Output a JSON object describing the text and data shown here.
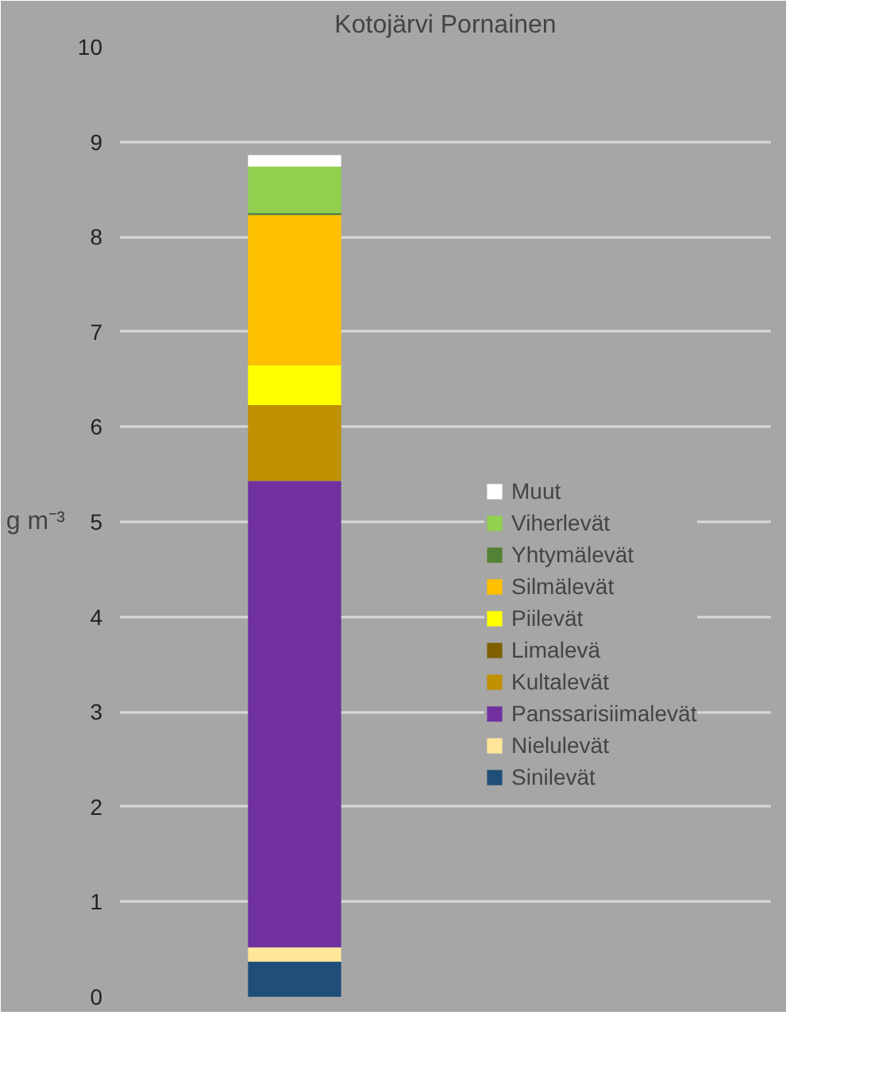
{
  "chart_data": {
    "type": "bar",
    "title": "Kotojärvi Pornainen",
    "ylabel": "g m⁻³",
    "categories": [
      null
    ],
    "stacked": true,
    "series": [
      {
        "name": "Sinilevät",
        "color": "#1f4e79",
        "values": [
          0.37
        ]
      },
      {
        "name": "Nielulevät",
        "color": "#ffe699",
        "values": [
          0.15
        ]
      },
      {
        "name": "Panssarisiimalevät",
        "color": "#7030a0",
        "values": [
          4.91
        ]
      },
      {
        "name": "Kultalevät",
        "color": "#bf9000",
        "values": [
          0.8
        ]
      },
      {
        "name": "Limalevä",
        "color": "#7f6000",
        "values": [
          0
        ]
      },
      {
        "name": "Piilevät",
        "color": "#ffff00",
        "values": [
          0.42
        ]
      },
      {
        "name": "Silmälevät",
        "color": "#ffc000",
        "values": [
          1.58
        ]
      },
      {
        "name": "Yhtymälevät",
        "color": "#548235",
        "values": [
          0.02
        ]
      },
      {
        "name": "Viherlevät",
        "color": "#92d050",
        "values": [
          0.49
        ]
      },
      {
        "name": "Muut",
        "color": "#ffffff",
        "values": [
          0.12
        ]
      }
    ],
    "ylim": [
      0,
      10
    ],
    "yticks": [
      0,
      1,
      2,
      3,
      4,
      5,
      6,
      7,
      8,
      9,
      10
    ],
    "grid": "y",
    "legend": "right"
  }
}
